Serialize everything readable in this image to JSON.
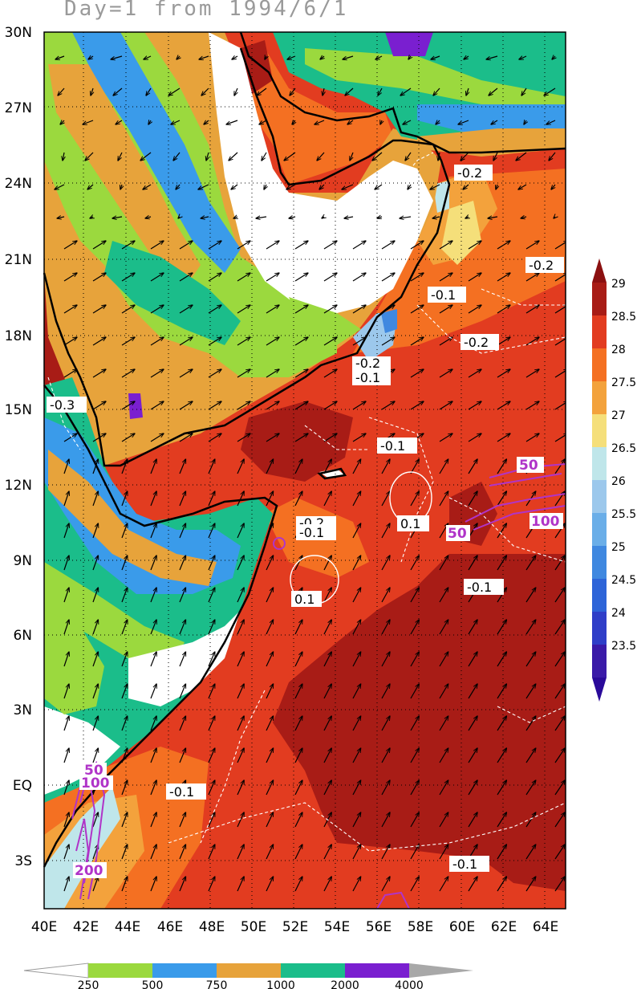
{
  "title": "Day=1  from 1994/6/1",
  "map": {
    "lat_labels": [
      "30N",
      "27N",
      "24N",
      "21N",
      "18N",
      "15N",
      "12N",
      "9N",
      "6N",
      "3N",
      "EQ",
      "3S"
    ],
    "lon_labels": [
      "40E",
      "42E",
      "44E",
      "46E",
      "48E",
      "50E",
      "52E",
      "54E",
      "56E",
      "58E",
      "60E",
      "62E",
      "64E"
    ],
    "contour_labels_white": [
      "-0.2",
      "-0.2",
      "-0.1",
      "-0.2",
      "-0.2",
      "-0.1",
      "-0.3",
      "-0.1",
      "0.1",
      "-0.2",
      "-0.1",
      "0.1",
      "-0.1",
      "-0.1",
      "-0.1"
    ],
    "contour_labels_purple": [
      "50",
      "50",
      "100",
      "50",
      "100",
      "200"
    ]
  },
  "sst_colorbar": {
    "labels": [
      "29",
      "28.5",
      "28",
      "27.5",
      "27",
      "26.5",
      "26",
      "25.5",
      "25",
      "24.5",
      "24",
      "23.5"
    ],
    "colors": [
      "#a81c16",
      "#e23c20",
      "#f47022",
      "#f3a23c",
      "#f5df7a",
      "#bfe6ea",
      "#9cc8ec",
      "#6aaee8",
      "#3f88e0",
      "#2d64d8",
      "#2f3ec8",
      "#3a1aa8"
    ]
  },
  "topo_colorbar": {
    "labels": [
      "250",
      "500",
      "750",
      "1000",
      "2000",
      "4000"
    ],
    "colors": [
      "#ffffff",
      "#9bd93e",
      "#3a9bea",
      "#e7a33b",
      "#1bbd8a",
      "#7a1fd0",
      "#a8a8a8"
    ]
  }
}
